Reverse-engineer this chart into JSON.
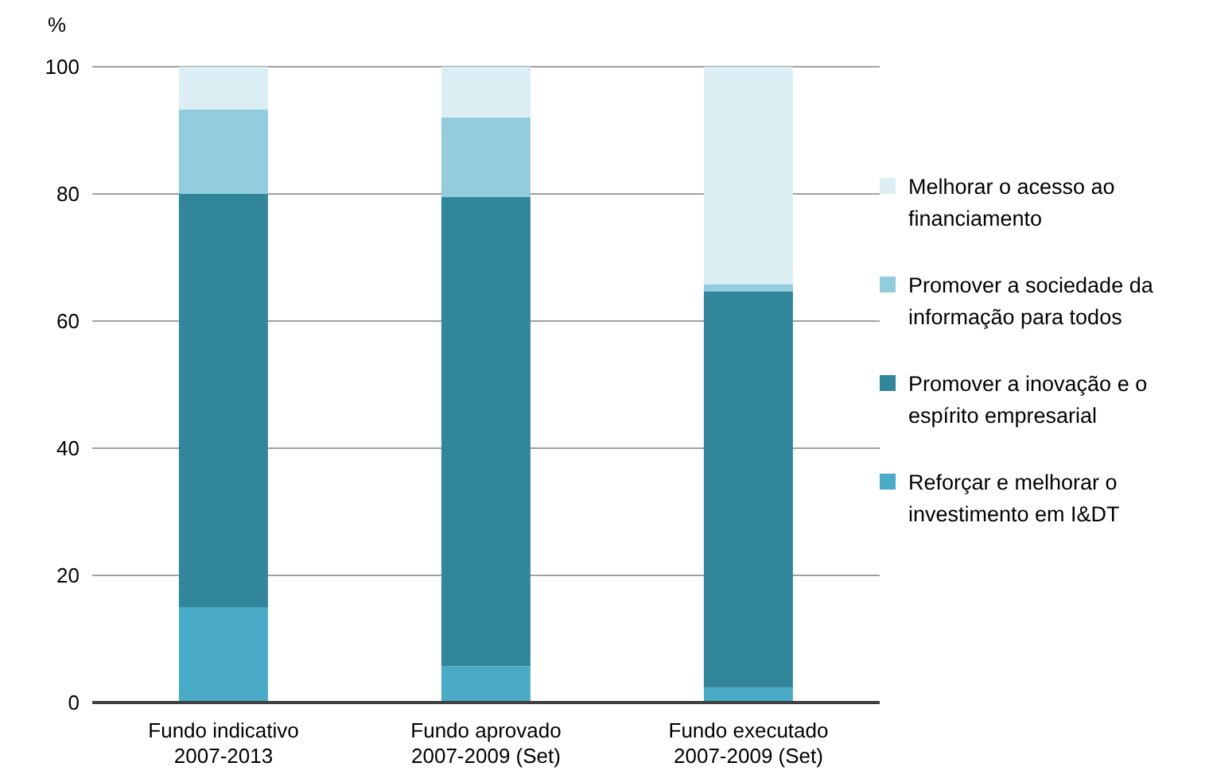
{
  "chart_data": {
    "type": "bar",
    "stacked": true,
    "ylabel": "%",
    "categories": [
      "Fundo indicativo\n2007-2013",
      "Fundo aprovado\n2007-2009 (Set)",
      "Fundo executado\n2007-2009 (Set)"
    ],
    "series": [
      {
        "name": "Reforçar e melhorar o investimento em I&DT",
        "color": "#4aabc6",
        "values": [
          15.0,
          5.7,
          2.3
        ]
      },
      {
        "name": "Promover a inovação e o espírito empresarial",
        "color": "#31869b",
        "values": [
          65.0,
          73.8,
          62.4
        ]
      },
      {
        "name": "Promover a sociedade da informação para todos",
        "color": "#93cddd",
        "values": [
          13.3,
          12.5,
          1.1
        ]
      },
      {
        "name": "Melhorar o acesso ao financiamento",
        "color": "#daeef3",
        "values": [
          6.7,
          8.0,
          34.2
        ]
      }
    ],
    "ylim": [
      0,
      100
    ],
    "yticks": [
      0,
      20,
      40,
      60,
      80,
      100
    ],
    "grid": "y",
    "legend": "right"
  }
}
